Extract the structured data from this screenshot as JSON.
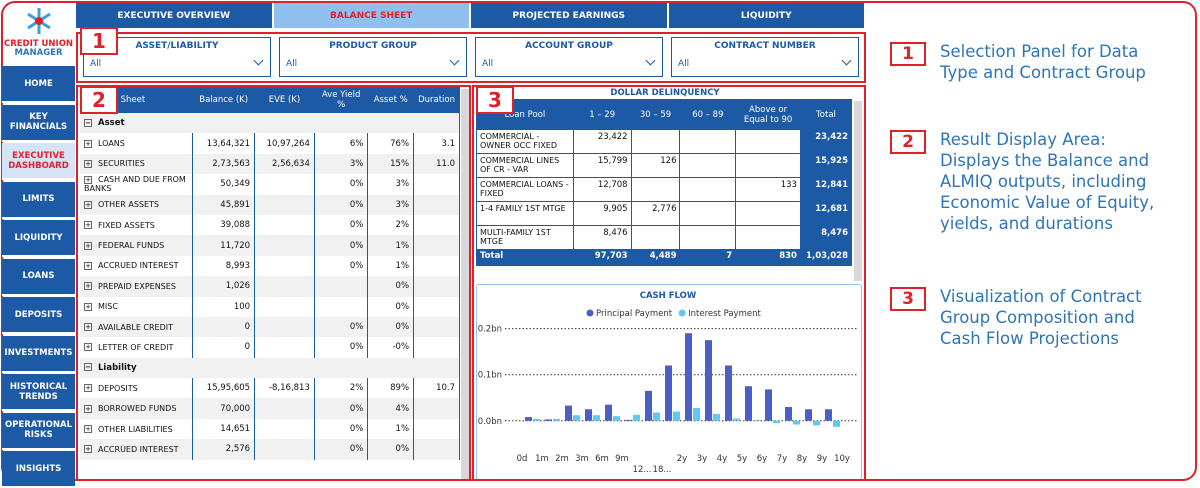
{
  "sidebar": {
    "logo_lines": [
      "CREDIT UNION",
      "MANAGER"
    ],
    "nav": [
      "HOME",
      "KEY FINANCIALS",
      "EXECUTIVE DASHBOARD",
      "LIMITS",
      "LIQUIDITY",
      "LOANS",
      "DEPOSITS",
      "INVESTMENTS",
      "HISTORICAL TRENDS",
      "OPERATIONAL RISKS",
      "INSIGHTS"
    ],
    "active": 2
  },
  "tabs": {
    "items": [
      "EXECUTIVE OVERVIEW",
      "BALANCE SHEET",
      "PROJECTED EARNINGS",
      "LIQUIDITY"
    ],
    "active": 1
  },
  "filters": [
    {
      "label": "ASSET/LIABILITY",
      "value": "All"
    },
    {
      "label": "PRODUCT GROUP",
      "value": "All"
    },
    {
      "label": "ACCOUNT GROUP",
      "value": "All"
    },
    {
      "label": "CONTRACT NUMBER",
      "value": "All"
    }
  ],
  "balance_table": {
    "columns": [
      "Balance Sheet",
      "Balance (K)",
      "EVE (K)",
      "Ave Yield %",
      "Asset %",
      "Duration"
    ],
    "groups": [
      {
        "name": "Asset",
        "rows": [
          [
            "LOANS",
            "13,64,321",
            "10,97,264",
            "6%",
            "76%",
            "3.1"
          ],
          [
            "SECURITIES",
            "2,73,563",
            "2,56,634",
            "3%",
            "15%",
            "11.0"
          ],
          [
            "CASH AND DUE FROM BANKS",
            "50,349",
            null,
            "0%",
            "3%",
            null
          ],
          [
            "OTHER ASSETS",
            "45,891",
            null,
            "0%",
            "3%",
            null
          ],
          [
            "FIXED ASSETS",
            "39,088",
            null,
            "0%",
            "2%",
            null
          ],
          [
            "FEDERAL FUNDS",
            "11,720",
            null,
            "0%",
            "1%",
            null
          ],
          [
            "ACCRUED INTEREST",
            "8,993",
            null,
            "0%",
            "1%",
            null
          ],
          [
            "PREPAID EXPENSES",
            "1,026",
            null,
            null,
            "0%",
            null
          ],
          [
            "MISC",
            "100",
            null,
            null,
            "0%",
            null
          ],
          [
            "AVAILABLE CREDIT",
            "0",
            null,
            "0%",
            "0%",
            null
          ],
          [
            "LETTER OF CREDIT",
            "0",
            null,
            "0%",
            "-0%",
            null
          ]
        ]
      },
      {
        "name": "Liability",
        "rows": [
          [
            "DEPOSITS",
            "15,95,605",
            "-8,16,813",
            "2%",
            "89%",
            "10.7"
          ],
          [
            "BORROWED FUNDS",
            "70,000",
            null,
            "0%",
            "4%",
            null
          ],
          [
            "OTHER LIABILITIES",
            "14,651",
            null,
            "0%",
            "1%",
            null
          ],
          [
            "ACCRUED INTEREST",
            "2,576",
            null,
            "0%",
            "0%",
            null
          ]
        ]
      }
    ]
  },
  "delinquency": {
    "title": "DOLLAR DELINQUENCY",
    "columns": [
      "Loan Pool",
      "1 – 29",
      "30 – 59",
      "60 – 89",
      "Above or Equal to 90",
      "Total"
    ],
    "rows": [
      [
        "COMMERCIAL - OWNER OCC FIXED",
        "23,422",
        null,
        null,
        null,
        "23,422"
      ],
      [
        "COMMERCIAL LINES OF CR - VAR",
        "15,799",
        "126",
        null,
        null,
        "15,925"
      ],
      [
        "COMMERCIAL LOANS - FIXED",
        "12,708",
        null,
        null,
        "133",
        "12,841"
      ],
      [
        "1-4 FAMILY 1ST MTGE",
        "9,905",
        "2,776",
        null,
        null,
        "12,681"
      ],
      [
        "MULTI-FAMILY 1ST MTGE",
        "8,476",
        null,
        null,
        null,
        "8,476"
      ]
    ],
    "total": [
      "Total",
      "97,703",
      "4,489",
      "7",
      "830",
      "1,03,028"
    ]
  },
  "chart_data": {
    "type": "bar",
    "title": "CASH FLOW",
    "categories": [
      "0d",
      "1m",
      "2m",
      "3m",
      "6m",
      "9m",
      "12...",
      "18...",
      "2y",
      "3y",
      "4y",
      "5y",
      "6y",
      "7y",
      "8y",
      "9y",
      "10y"
    ],
    "series": [
      {
        "name": "Principal Payment",
        "color": "#4b5fc6",
        "values": [
          0,
          0.008,
          0.003,
          0.033,
          0.025,
          0.035,
          0.002,
          0.065,
          0.12,
          0.19,
          0.175,
          0.12,
          0.075,
          0.068,
          0.03,
          0.025,
          0.025
        ]
      },
      {
        "name": "Interest Payment",
        "color": "#5ec9f2",
        "values": [
          0,
          0.004,
          0.004,
          0.012,
          0.012,
          0.01,
          0.013,
          0.018,
          0.02,
          0.028,
          0.015,
          0.005,
          0.002,
          -0.005,
          -0.008,
          -0.01,
          -0.013
        ]
      }
    ],
    "ylim": [
      -0.02,
      0.21
    ],
    "yticks": [
      {
        "value": 0,
        "label": "0.0bn"
      },
      {
        "value": 0.1,
        "label": "0.1bn"
      },
      {
        "value": 0.2,
        "label": "0.2bn"
      }
    ],
    "grid": true,
    "legend": "top"
  },
  "badges": [
    "1",
    "2",
    "3"
  ],
  "callouts": [
    {
      "number": "1",
      "text": "Selection Panel for Data Type and Contract Group"
    },
    {
      "number": "2",
      "text": "Result Display Area: Displays the Balance and ALMIQ outputs, including Economic Value of Equity, yields, and durations"
    },
    {
      "number": "3",
      "text": "Visualization of Contract Group Composition and Cash Flow Projections"
    }
  ]
}
